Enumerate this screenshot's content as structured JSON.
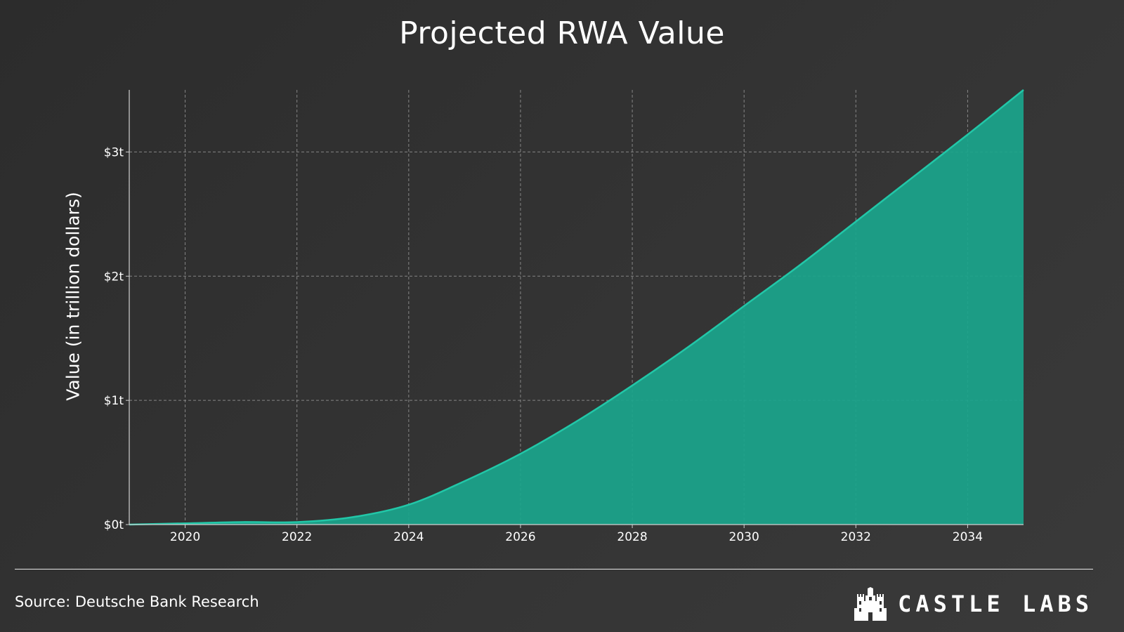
{
  "chart_data": {
    "type": "area",
    "title": "Projected RWA Value",
    "ylabel": "Value (in trillion dollars)",
    "xlabel": "",
    "x": [
      2019,
      2020,
      2021,
      2022,
      2023,
      2024,
      2025,
      2026,
      2027,
      2028,
      2029,
      2030,
      2031,
      2032,
      2033,
      2034,
      2035
    ],
    "values": [
      0.0,
      0.01,
      0.02,
      0.02,
      0.06,
      0.16,
      0.35,
      0.57,
      0.83,
      1.12,
      1.43,
      1.76,
      2.09,
      2.44,
      2.79,
      3.14,
      3.5
    ],
    "xlim": [
      2019,
      2035
    ],
    "ylim": [
      0,
      3.5
    ],
    "x_ticks": [
      2020,
      2022,
      2024,
      2026,
      2028,
      2030,
      2032,
      2034
    ],
    "x_tick_labels": [
      "2020",
      "2022",
      "2024",
      "2026",
      "2028",
      "2030",
      "2032",
      "2034"
    ],
    "y_ticks": [
      0,
      1,
      2,
      3
    ],
    "y_tick_labels": [
      "$0t",
      "$1t",
      "$2t",
      "$3t"
    ],
    "grid": true,
    "fill_color": "#1aa58c",
    "line_color": "#22c7a8"
  },
  "footer": {
    "source": "Source: Deutsche Bank Research",
    "brand": "CASTLE LABS"
  },
  "icons": {
    "logo": "castle-icon"
  }
}
